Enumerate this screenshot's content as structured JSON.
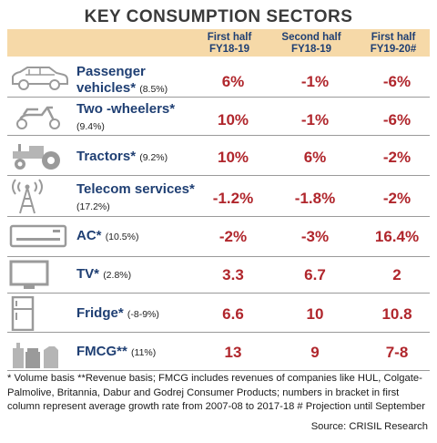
{
  "title": "KEY CONSUMPTION SECTORS",
  "columns": [
    {
      "line1": "First half",
      "line2": "FY18-19"
    },
    {
      "line1": "Second half",
      "line2": "FY18-19"
    },
    {
      "line1": "First half",
      "line2": "FY19-20#"
    }
  ],
  "rows": [
    {
      "icon": "car-icon",
      "name": "Passenger vehicles*",
      "growth": "(8.5%)",
      "values": [
        "6%",
        "-1%",
        "-6%"
      ]
    },
    {
      "icon": "scooter-icon",
      "name": "Two -wheelers*",
      "growth": "(9.4%)",
      "values": [
        "10%",
        "-1%",
        "-6%"
      ]
    },
    {
      "icon": "tractor-icon",
      "name": "Tractors*",
      "growth": "(9.2%)",
      "values": [
        "10%",
        "6%",
        "-2%"
      ]
    },
    {
      "icon": "tower-icon",
      "name": "Telecom services*",
      "growth": "(17.2%)",
      "values": [
        "-1.2%",
        "-1.8%",
        "-2%"
      ]
    },
    {
      "icon": "air-conditioner-icon",
      "name": "AC*",
      "growth": "(10.5%)",
      "values": [
        "-2%",
        "-3%",
        "16.4%"
      ]
    },
    {
      "icon": "tv-icon",
      "name": "TV*",
      "growth": "(2.8%)",
      "values": [
        "3.3",
        "6.7",
        "2"
      ]
    },
    {
      "icon": "fridge-icon",
      "name": "Fridge*",
      "growth": "(-8-9%)",
      "values": [
        "6.6",
        "10",
        "10.8"
      ]
    },
    {
      "icon": "bottles-icon",
      "name": "FMCG**",
      "growth": "(11%)",
      "values": [
        "13",
        "9",
        "7-8"
      ]
    }
  ],
  "footnote": "* Volume basis **Revenue basis; FMCG includes revenues of companies like HUL, Colgate-Palmolive, Britannia, Dabur and Godrej Consumer Products; numbers in bracket in first column represent average growth rate from 2007-08 to 2017-18 # Projection until September",
  "source": "Source: CRISIL Research",
  "colors": {
    "header_band": "#f6d9a8",
    "label": "#1f3f73",
    "value": "#b0262c",
    "icon": "#9a9a9a"
  }
}
